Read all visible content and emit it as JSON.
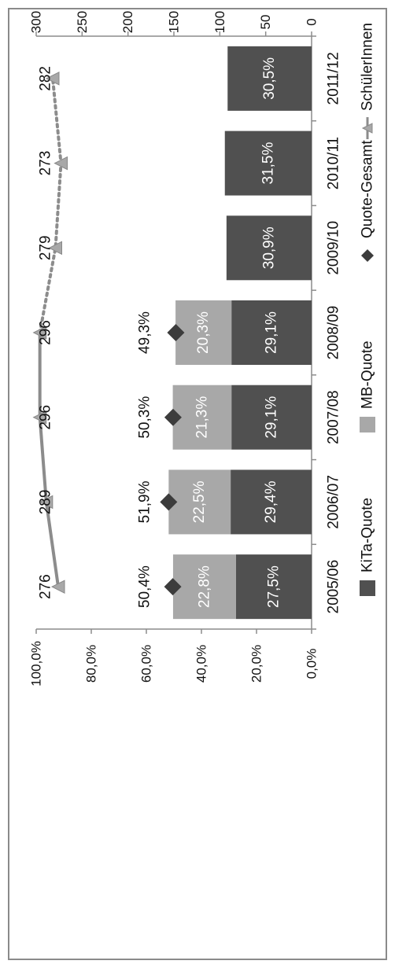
{
  "chart_data": {
    "type": "bar",
    "orientation": "rotated-90-clockwise",
    "categories": [
      "2005/06",
      "2006/07",
      "2007/08",
      "2008/09",
      "2009/10",
      "2010/11",
      "2011/12"
    ],
    "series": [
      {
        "name": "KiTa-Quote",
        "kind": "stacked-bar",
        "axis": "percent",
        "values": [
          27.5,
          29.4,
          29.1,
          29.1,
          30.9,
          31.5,
          30.5
        ],
        "labels": [
          "27,5%",
          "29,4%",
          "29,1%",
          "29,1%",
          "30,9%",
          "31,5%",
          "30,5%"
        ],
        "color": "#505050"
      },
      {
        "name": "MB-Quote",
        "kind": "stacked-bar",
        "axis": "percent",
        "values": [
          22.8,
          22.5,
          21.3,
          20.3,
          null,
          null,
          null
        ],
        "labels": [
          "22,8%",
          "22,5%",
          "21,3%",
          "20,3%",
          "",
          "",
          ""
        ],
        "color": "#a8a8a8"
      },
      {
        "name": "Quote-Gesamt",
        "kind": "marker",
        "axis": "percent",
        "values": [
          50.4,
          51.9,
          50.3,
          49.3,
          null,
          null,
          null
        ],
        "labels": [
          "50,4%",
          "51,9%",
          "50,3%",
          "49,3%",
          "",
          "",
          ""
        ],
        "color": "#3c3c3c"
      },
      {
        "name": "SchülerInnen",
        "kind": "line",
        "axis": "count",
        "values": [
          276,
          289,
          296,
          296,
          279,
          273,
          282
        ],
        "labels": [
          "276",
          "289",
          "296",
          "296",
          "279",
          "273",
          "282"
        ],
        "color": "#8c8c8c"
      }
    ],
    "percent_axis": {
      "range": [
        0,
        100
      ],
      "ticks": [
        "0,0%",
        "20,0%",
        "40,0%",
        "60,0%",
        "80,0%",
        "100,0%"
      ]
    },
    "count_axis": {
      "range": [
        0,
        300
      ],
      "ticks": [
        "0",
        "50",
        "100",
        "150",
        "200",
        "250",
        "300"
      ]
    },
    "grid": false,
    "legend_placement": "bottom"
  }
}
